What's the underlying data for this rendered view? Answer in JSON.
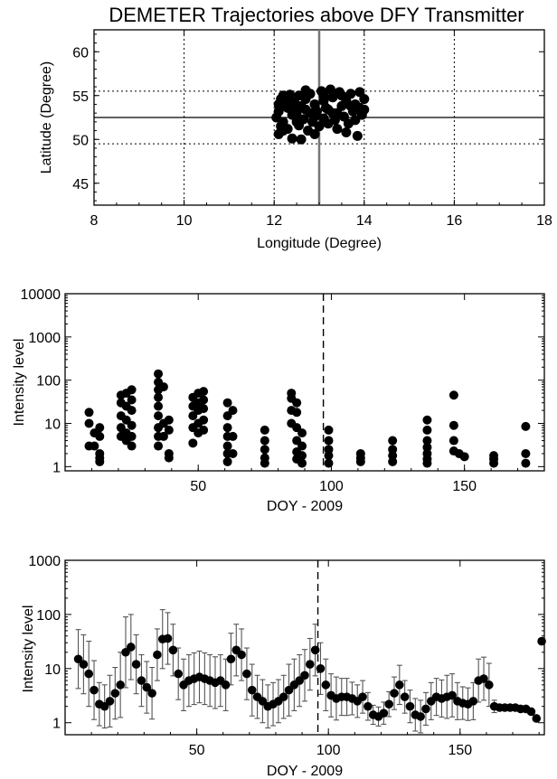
{
  "chart_data": [
    {
      "type": "scatter",
      "title": "DEMETER Trajectories above DFY Transmitter",
      "xlabel": "Longitude (Degree)",
      "ylabel": "Latitude (Degree)",
      "xlim": [
        8,
        18
      ],
      "ylim": [
        42.5,
        62.5
      ],
      "xticks": [
        "8",
        "10",
        "12",
        "14",
        "16",
        "18"
      ],
      "yticks": [
        "45",
        "50",
        "55",
        "60"
      ],
      "transmitter": {
        "x": 13.0,
        "y": 52.5
      },
      "grid_y": [
        49.5,
        55.5
      ],
      "points": [
        [
          12.05,
          52.5
        ],
        [
          12.1,
          53.2
        ],
        [
          12.1,
          54.0
        ],
        [
          12.15,
          51.5
        ],
        [
          12.1,
          50.6
        ],
        [
          12.2,
          55.0
        ],
        [
          12.15,
          54.6
        ],
        [
          12.2,
          52.0
        ],
        [
          12.3,
          53.6
        ],
        [
          12.35,
          55.1
        ],
        [
          12.3,
          51.2
        ],
        [
          12.4,
          50.1
        ],
        [
          12.4,
          52.8
        ],
        [
          12.45,
          54.2
        ],
        [
          12.5,
          53.0
        ],
        [
          12.55,
          51.6
        ],
        [
          12.55,
          55.0
        ],
        [
          12.6,
          50.0
        ],
        [
          12.65,
          52.3
        ],
        [
          12.7,
          54.6
        ],
        [
          12.7,
          53.4
        ],
        [
          12.75,
          51.0
        ],
        [
          12.8,
          55.2
        ],
        [
          12.85,
          52.0
        ],
        [
          12.9,
          54.0
        ],
        [
          12.9,
          50.6
        ],
        [
          12.95,
          53.2
        ],
        [
          13.0,
          51.5
        ],
        [
          13.05,
          55.5
        ],
        [
          13.1,
          54.4
        ],
        [
          13.1,
          52.4
        ],
        [
          13.15,
          53.6
        ],
        [
          13.2,
          51.8
        ],
        [
          13.25,
          55.7
        ],
        [
          13.3,
          53.0
        ],
        [
          13.3,
          54.8
        ],
        [
          13.35,
          52.2
        ],
        [
          13.4,
          51.2
        ],
        [
          13.45,
          55.4
        ],
        [
          13.5,
          53.8
        ],
        [
          13.55,
          52.6
        ],
        [
          13.6,
          54.4
        ],
        [
          13.6,
          50.8
        ],
        [
          13.65,
          51.8
        ],
        [
          13.7,
          55.2
        ],
        [
          13.75,
          53.2
        ],
        [
          13.8,
          54.0
        ],
        [
          13.8,
          52.2
        ],
        [
          13.85,
          50.4
        ],
        [
          13.9,
          55.4
        ],
        [
          13.9,
          53.6
        ],
        [
          13.95,
          52.8
        ],
        [
          14.0,
          54.6
        ],
        [
          14.0,
          53.4
        ],
        [
          12.6,
          53.8
        ],
        [
          12.4,
          53.4
        ],
        [
          12.8,
          53.0
        ],
        [
          13.2,
          53.4
        ],
        [
          13.5,
          55.0
        ],
        [
          12.3,
          54.6
        ],
        [
          12.2,
          51.0
        ],
        [
          12.7,
          55.6
        ],
        [
          13.4,
          53.0
        ],
        [
          13.7,
          53.8
        ],
        [
          12.9,
          52.6
        ],
        [
          12.5,
          52.0
        ],
        [
          13.1,
          55.0
        ],
        [
          12.2,
          53.8
        ]
      ]
    },
    {
      "type": "scatter",
      "xlabel": "DOY - 2009",
      "ylabel": "Intensity level",
      "xlim": [
        0,
        180
      ],
      "ylim": [
        0.8,
        10000
      ],
      "yscale": "log",
      "xticks": [
        "50",
        "100",
        "150"
      ],
      "yticks": [
        "1",
        "10",
        "100",
        "1000",
        "10000"
      ],
      "vline": 97,
      "points": [
        [
          9,
          18
        ],
        [
          9,
          10
        ],
        [
          9,
          3
        ],
        [
          11,
          6
        ],
        [
          11,
          3
        ],
        [
          13,
          8
        ],
        [
          13,
          5
        ],
        [
          13,
          2
        ],
        [
          13,
          1.6
        ],
        [
          13,
          1.3
        ],
        [
          21,
          45
        ],
        [
          21,
          30
        ],
        [
          21,
          15
        ],
        [
          21,
          8
        ],
        [
          21,
          5
        ],
        [
          23,
          50
        ],
        [
          23,
          25
        ],
        [
          23,
          12
        ],
        [
          23,
          6
        ],
        [
          23,
          4
        ],
        [
          25,
          60
        ],
        [
          25,
          35
        ],
        [
          25,
          20
        ],
        [
          25,
          9
        ],
        [
          25,
          5
        ],
        [
          25,
          3
        ],
        [
          35,
          140
        ],
        [
          35,
          90
        ],
        [
          35,
          60
        ],
        [
          35,
          40
        ],
        [
          35,
          25
        ],
        [
          35,
          15
        ],
        [
          35,
          8
        ],
        [
          35,
          5
        ],
        [
          35,
          3
        ],
        [
          37,
          70
        ],
        [
          37,
          10
        ],
        [
          37,
          5
        ],
        [
          39,
          12
        ],
        [
          39,
          7
        ],
        [
          39,
          2
        ],
        [
          39,
          1.6
        ],
        [
          48,
          40
        ],
        [
          48,
          25
        ],
        [
          48,
          15
        ],
        [
          48,
          8
        ],
        [
          48,
          3.5
        ],
        [
          50,
          50
        ],
        [
          50,
          30
        ],
        [
          50,
          20
        ],
        [
          50,
          10
        ],
        [
          50,
          6
        ],
        [
          52,
          55
        ],
        [
          52,
          35
        ],
        [
          52,
          22
        ],
        [
          52,
          12
        ],
        [
          52,
          7
        ],
        [
          61,
          30
        ],
        [
          61,
          15
        ],
        [
          61,
          8
        ],
        [
          61,
          5
        ],
        [
          61,
          3
        ],
        [
          61,
          2
        ],
        [
          61,
          1.3
        ],
        [
          63,
          20
        ],
        [
          63,
          5
        ],
        [
          63,
          2
        ],
        [
          75,
          7
        ],
        [
          75,
          4
        ],
        [
          75,
          2.5
        ],
        [
          75,
          1.6
        ],
        [
          75,
          1.2
        ],
        [
          85,
          50
        ],
        [
          85,
          38
        ],
        [
          85,
          20
        ],
        [
          85,
          10
        ],
        [
          87,
          30
        ],
        [
          87,
          18
        ],
        [
          87,
          8
        ],
        [
          87,
          4
        ],
        [
          87,
          2.2
        ],
        [
          87,
          1.5
        ],
        [
          89,
          6
        ],
        [
          89,
          3
        ],
        [
          89,
          1.8
        ],
        [
          89,
          1.2
        ],
        [
          99,
          7
        ],
        [
          99,
          4
        ],
        [
          99,
          2.5
        ],
        [
          99,
          1.8
        ],
        [
          99,
          1.2
        ],
        [
          111,
          2
        ],
        [
          111,
          1.6
        ],
        [
          111,
          1.3
        ],
        [
          123,
          4
        ],
        [
          123,
          2.5
        ],
        [
          123,
          1.8
        ],
        [
          123,
          1.3
        ],
        [
          136,
          12
        ],
        [
          136,
          7
        ],
        [
          136,
          4
        ],
        [
          136,
          2.8
        ],
        [
          136,
          2
        ],
        [
          136,
          1.5
        ],
        [
          136,
          1.2
        ],
        [
          146,
          45
        ],
        [
          146,
          9
        ],
        [
          146,
          4
        ],
        [
          146,
          2.3
        ],
        [
          148,
          2
        ],
        [
          150,
          1.7
        ],
        [
          161,
          1.8
        ],
        [
          161,
          1.5
        ],
        [
          161,
          1.2
        ],
        [
          173,
          8.5
        ],
        [
          173,
          2
        ],
        [
          173,
          1.2
        ]
      ]
    },
    {
      "type": "line",
      "xlabel": "DOY - 2009",
      "ylabel": "Intensity level",
      "xlim": [
        0,
        182
      ],
      "ylim": [
        0.6,
        1000
      ],
      "yscale": "log",
      "xticks": [
        "50",
        "100",
        "150"
      ],
      "yticks": [
        "1",
        "10",
        "100",
        "1000"
      ],
      "vline": 96,
      "error_bars": true,
      "series": [
        {
          "x": [
            5,
            7,
            9,
            11,
            13,
            15,
            17,
            19,
            21,
            23,
            25,
            27,
            29,
            31,
            33,
            35,
            37,
            39,
            41,
            43,
            45,
            47,
            49,
            51,
            53,
            55,
            57,
            59,
            61,
            63,
            65,
            67,
            69,
            71,
            73,
            75,
            77,
            79,
            81,
            83,
            85,
            87,
            89,
            91,
            93,
            95,
            97,
            99,
            101,
            103,
            105,
            107,
            109,
            111,
            113,
            115,
            117,
            119,
            121,
            123,
            125,
            127,
            129,
            131,
            133,
            135,
            137,
            139,
            141,
            143,
            145,
            147,
            149,
            151,
            153,
            155,
            157,
            159,
            161,
            163,
            165,
            167,
            169,
            171,
            173,
            175,
            177,
            179,
            181
          ],
          "y": [
            15,
            12,
            8,
            4,
            2.2,
            2,
            2.5,
            3.5,
            5,
            20,
            25,
            12,
            6,
            4.5,
            3.5,
            18,
            35,
            36,
            22,
            8,
            5,
            6,
            6.5,
            7,
            6.5,
            6,
            5.5,
            6,
            5,
            15,
            22,
            18,
            8,
            4,
            3,
            2.5,
            2,
            2.2,
            2.5,
            3,
            4,
            5,
            6,
            7.5,
            12,
            22,
            10,
            5,
            3.2,
            2.8,
            3,
            3,
            2.8,
            2.5,
            3,
            2,
            1.4,
            1.3,
            1.5,
            2.2,
            3.5,
            5,
            3,
            2,
            1.4,
            1.3,
            1.8,
            2.5,
            3,
            2.8,
            3,
            3.2,
            2.5,
            2.3,
            2.2,
            2.5,
            6,
            6.5,
            5,
            2,
            1.9,
            1.9,
            1.9,
            1.9,
            1.8,
            1.8,
            1.6,
            1.2,
            32
          ],
          "err": [
            3.5,
            3.5,
            4,
            3.5,
            2.5,
            2.5,
            3,
            3,
            4,
            4.5,
            4,
            3.5,
            3,
            3,
            3,
            3,
            3.5,
            3,
            3,
            3,
            3,
            3,
            3,
            3,
            3,
            3,
            3,
            3,
            3,
            3,
            3,
            3,
            3,
            3,
            2.5,
            2.5,
            2.5,
            2.5,
            2.5,
            2.5,
            3,
            3,
            3,
            3,
            3,
            3,
            3,
            3,
            2.5,
            2.5,
            2.2,
            2.2,
            2,
            2,
            2,
            1.8,
            1.5,
            1.5,
            1.6,
            1.7,
            2,
            2.3,
            2,
            2,
            2,
            2,
            2,
            2.2,
            2.2,
            2.2,
            2.5,
            2.5,
            2.2,
            2,
            2,
            2.2,
            2.5,
            2.5,
            2.5,
            1.3,
            1.1,
            1.1,
            1.1,
            1.1,
            1.1,
            1.1,
            1.1,
            1.1,
            1.1
          ]
        }
      ]
    }
  ]
}
